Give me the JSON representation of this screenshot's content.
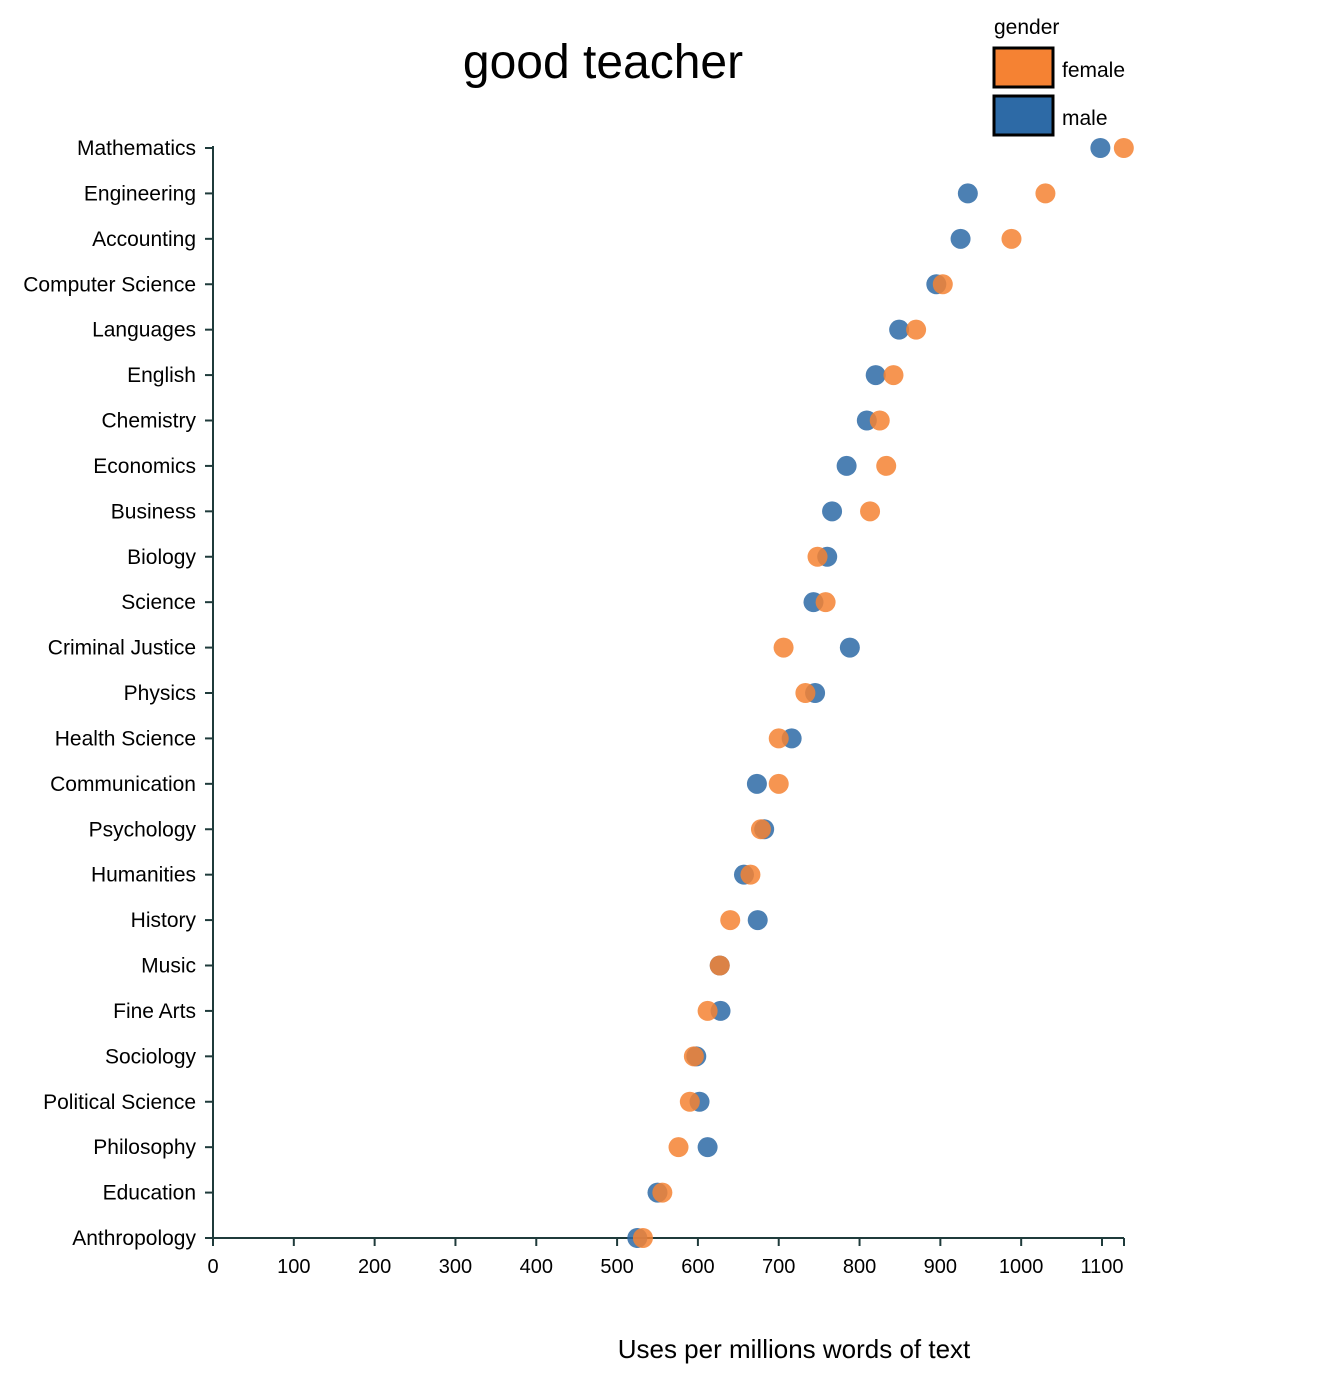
{
  "chart_data": {
    "type": "scatter",
    "title": "good teacher",
    "xlabel": "Uses per millions words of text",
    "ylabel": "",
    "xlim": [
      0,
      1130
    ],
    "xticks": [
      "0",
      "100",
      "200",
      "300",
      "400",
      "500",
      "600",
      "700",
      "800",
      "900",
      "1000",
      "1100"
    ],
    "grid": false,
    "legend": {
      "title": "gender",
      "position": "top-right",
      "entries": [
        {
          "name": "female",
          "color": "#f58233"
        },
        {
          "name": "male",
          "color": "#2d6aa6"
        }
      ]
    },
    "categories": [
      "Mathematics",
      "Engineering",
      "Accounting",
      "Computer Science",
      "Languages",
      "English",
      "Chemistry",
      "Economics",
      "Business",
      "Biology",
      "Science",
      "Criminal Justice",
      "Physics",
      "Health Science",
      "Communication",
      "Psychology",
      "Humanities",
      "History",
      "Music",
      "Fine Arts",
      "Sociology",
      "Political Science",
      "Philosophy",
      "Education",
      "Anthropology"
    ],
    "series": [
      {
        "name": "female",
        "color": "#f58233",
        "values": [
          1127,
          1030,
          988,
          903,
          870,
          842,
          825,
          833,
          813,
          748,
          758,
          706,
          733,
          700,
          700,
          678,
          665,
          640,
          627,
          612,
          595,
          590,
          576,
          556,
          532
        ]
      },
      {
        "name": "male",
        "color": "#2d6aa6",
        "values": [
          1098,
          934,
          925,
          895,
          849,
          820,
          809,
          784,
          766,
          760,
          743,
          788,
          745,
          716,
          673,
          682,
          657,
          674,
          627,
          628,
          598,
          602,
          612,
          550,
          525
        ]
      }
    ]
  }
}
